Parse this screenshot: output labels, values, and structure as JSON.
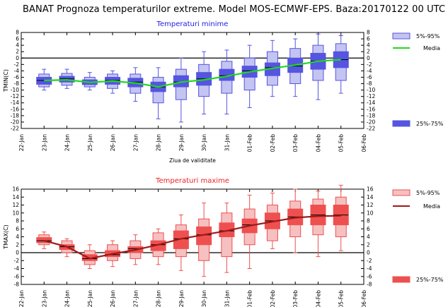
{
  "title": "BANAT  Prognoza temperaturilor extreme.  Model MOS-ECMWF-EPS. Baza:20170122 00 UTC",
  "colors": {
    "min_box": "#5555e0",
    "min_whisker_box": "#c4c4f2",
    "min_line": "#20d820",
    "min_title": "#2222dd",
    "max_box": "#ee5050",
    "max_whisker_box": "#f6c0c0",
    "max_line": "#a01818",
    "max_title": "#ee2222"
  },
  "chart_data": [
    {
      "type": "boxplot",
      "title": "Temperaturi minime",
      "ylabel": "TMIN(C)",
      "xlabel": "Ziua de validitate",
      "ylim": [
        -22,
        8
      ],
      "y_ticks": [
        8,
        6,
        4,
        2,
        0,
        -2,
        -4,
        -6,
        -8,
        -10,
        -12,
        -14,
        -16,
        -18,
        -20,
        -22
      ],
      "categories": [
        "22-Jan",
        "23-Jan",
        "24-Jan",
        "25-Jan",
        "26-Jan",
        "27-Jan",
        "28-Jan",
        "29-Jan",
        "30-Jan",
        "31-Jan",
        "01-Feb",
        "02-Feb",
        "03-Feb",
        "04-Feb",
        "05-Feb",
        "06-Feb"
      ],
      "legend": {
        "range_label": "5%-95%",
        "media_label": "Media",
        "iqr_label": "25%-75%"
      },
      "series": [
        {
          "x": "23-Jan",
          "min": -10,
          "p5": -9,
          "p25": -8.2,
          "median": -7,
          "p75": -6,
          "p95": -5,
          "max": -3.5,
          "mean": -7
        },
        {
          "x": "24-Jan",
          "min": -9.5,
          "p5": -8.5,
          "p25": -7.5,
          "median": -6.5,
          "p75": -5.7,
          "p95": -4.8,
          "max": -3.5,
          "mean": -6.8
        },
        {
          "x": "25-Jan",
          "min": -10,
          "p5": -9,
          "p25": -8.3,
          "median": -7.5,
          "p75": -6.8,
          "p95": -6,
          "max": -4.5,
          "mean": -7.6
        },
        {
          "x": "26-Jan",
          "min": -11,
          "p5": -9.5,
          "p25": -8.2,
          "median": -7,
          "p75": -6,
          "p95": -5,
          "max": -4,
          "mean": -7.2
        },
        {
          "x": "27-Jan",
          "min": -13.5,
          "p5": -11,
          "p25": -9,
          "median": -7.5,
          "p75": -6.3,
          "p95": -5,
          "max": -3,
          "mean": -7.8
        },
        {
          "x": "28-Jan",
          "min": -19,
          "p5": -14,
          "p25": -10.5,
          "median": -9,
          "p75": -7.5,
          "p95": -6,
          "max": -3,
          "mean": -9
        },
        {
          "x": "29-Jan",
          "min": -20,
          "p5": -13,
          "p25": -9,
          "median": -7.5,
          "p75": -5.5,
          "p95": -3.5,
          "max": 0,
          "mean": -7.5
        },
        {
          "x": "30-Jan",
          "min": -17.5,
          "p5": -12,
          "p25": -8.5,
          "median": -6.5,
          "p75": -4.5,
          "p95": -2,
          "max": 2,
          "mean": -6.8
        },
        {
          "x": "31-Jan",
          "min": -17.5,
          "p5": -11,
          "p25": -7,
          "median": -5.5,
          "p75": -3.5,
          "p95": -1,
          "max": 2.5,
          "mean": -5.7
        },
        {
          "x": "01-Feb",
          "min": -15.5,
          "p5": -10,
          "p25": -6,
          "median": -4,
          "p75": -2.5,
          "p95": 0,
          "max": 4,
          "mean": -4.3
        },
        {
          "x": "02-Feb",
          "min": -12,
          "p5": -8.5,
          "p25": -5.5,
          "median": -3,
          "p75": -1.5,
          "p95": 2,
          "max": 5.5,
          "mean": -3.2
        },
        {
          "x": "03-Feb",
          "min": -12,
          "p5": -8,
          "p25": -4.5,
          "median": -2.5,
          "p75": 0,
          "p95": 3,
          "max": 6,
          "mean": -2.2
        },
        {
          "x": "04-Feb",
          "min": -13,
          "p5": -7,
          "p25": -3.5,
          "median": -1,
          "p75": 1.5,
          "p95": 4,
          "max": 7.5,
          "mean": -1
        },
        {
          "x": "05-Feb",
          "min": -11,
          "p5": -7,
          "p25": -3,
          "median": -0.5,
          "p75": 2,
          "p95": 4.5,
          "max": 7,
          "mean": -0.5
        }
      ]
    },
    {
      "type": "boxplot",
      "title": "Temperaturi maxime",
      "ylabel": "TMAX(C)",
      "xlabel": "",
      "ylim": [
        -8,
        16
      ],
      "y_ticks": [
        16,
        14,
        12,
        10,
        8,
        6,
        4,
        2,
        0,
        -2,
        -4,
        -6,
        -8
      ],
      "categories": [
        "22-Jan",
        "23-Jan",
        "24-Jan",
        "25-Jan",
        "26-Jan",
        "27-Jan",
        "28-Jan",
        "29-Jan",
        "30-Jan",
        "31-Jan",
        "01-Feb",
        "02-Feb",
        "03-Feb",
        "04-Feb",
        "05-Feb",
        "06-Feb"
      ],
      "legend": {
        "range_label": "5%-95%",
        "media_label": "Media",
        "iqr_label": "25%-75%"
      },
      "series": [
        {
          "x": "23-Jan",
          "min": 1,
          "p5": 2,
          "p25": 2.5,
          "median": 3,
          "p75": 3.8,
          "p95": 4.5,
          "max": 5.2,
          "mean": 3
        },
        {
          "x": "24-Jan",
          "min": -1,
          "p5": 0,
          "p25": 0.8,
          "median": 1.5,
          "p75": 2,
          "p95": 3,
          "max": 3.5,
          "mean": 1.5
        },
        {
          "x": "25-Jan",
          "min": -4,
          "p5": -3,
          "p25": -2,
          "median": -1.5,
          "p75": -0.5,
          "p95": 0.5,
          "max": 2,
          "mean": -1.5
        },
        {
          "x": "26-Jan",
          "min": -3.5,
          "p5": -2,
          "p25": -1,
          "median": -0.5,
          "p75": 0.5,
          "p95": 2,
          "max": 3,
          "mean": -0.3
        },
        {
          "x": "27-Jan",
          "min": -3,
          "p5": -1.5,
          "p25": 0,
          "median": 1,
          "p75": 1.5,
          "p95": 3,
          "max": 4.5,
          "mean": 0.7
        },
        {
          "x": "28-Jan",
          "min": -3,
          "p5": -1,
          "p25": 0.5,
          "median": 2,
          "p75": 3,
          "p95": 5,
          "max": 6,
          "mean": 2
        },
        {
          "x": "29-Jan",
          "min": -4.5,
          "p5": -1,
          "p25": 1,
          "median": 3.5,
          "p75": 5.5,
          "p95": 7,
          "max": 9.5,
          "mean": 3.5
        },
        {
          "x": "30-Jan",
          "min": -6,
          "p5": -2,
          "p25": 2,
          "median": 4.5,
          "p75": 6.5,
          "p95": 8.5,
          "max": 12.5,
          "mean": 4.5
        },
        {
          "x": "31-Jan",
          "min": -5,
          "p5": -1,
          "p25": 4,
          "median": 5.5,
          "p75": 7.5,
          "p95": 10,
          "max": 12.5,
          "mean": 5.5
        },
        {
          "x": "01-Feb",
          "min": -4,
          "p5": 2,
          "p25": 5,
          "median": 7,
          "p75": 8.5,
          "p95": 11,
          "max": 14.5,
          "mean": 6.8
        },
        {
          "x": "02-Feb",
          "min": 1,
          "p5": 3,
          "p25": 6,
          "median": 8,
          "p75": 10,
          "p95": 12,
          "max": 15,
          "mean": 7.8
        },
        {
          "x": "03-Feb",
          "min": 0,
          "p5": 4,
          "p25": 7,
          "median": 9,
          "p75": 11,
          "p95": 13,
          "max": 16,
          "mean": 8.8
        },
        {
          "x": "04-Feb",
          "min": -1,
          "p5": 4.5,
          "p25": 7,
          "median": 9.5,
          "p75": 12,
          "p95": 13.5,
          "max": 15.5,
          "mean": 9.2
        },
        {
          "x": "05-Feb",
          "min": 0.5,
          "p5": 4,
          "p25": 7,
          "median": 9.5,
          "p75": 12,
          "p95": 14,
          "max": 17,
          "mean": 9.3
        }
      ]
    }
  ]
}
